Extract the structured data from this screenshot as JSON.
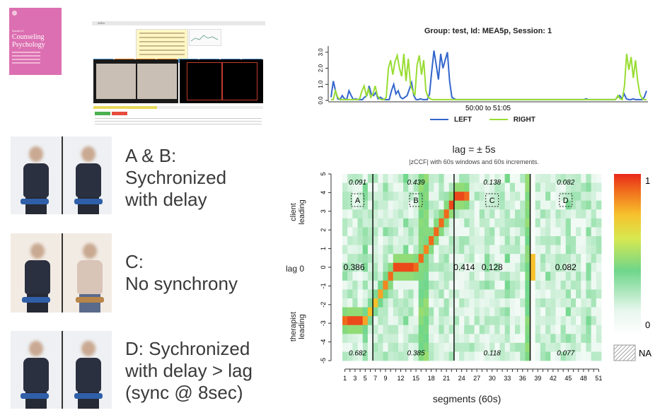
{
  "cover": {
    "journal_of": "Journal of",
    "title": "Counseling Psychology"
  },
  "software": {
    "window_title": "rMEA"
  },
  "captions": [
    {
      "lines": [
        "A & B:",
        "Sychronized",
        "with delay"
      ]
    },
    {
      "lines": [
        "C:",
        "No synchrony"
      ]
    },
    {
      "lines": [
        "D: Sychronized",
        "with delay > lag",
        "(sync @ 8sec)"
      ]
    }
  ],
  "timeseries": {
    "title": "Group: test, Id: MEA5p, Session: 1",
    "xlabel": "50:00 to 51:05",
    "y_ticks": [
      "0.0",
      "1.0",
      "2.0",
      "3.0"
    ],
    "legend": [
      {
        "name": "LEFT",
        "color": "#3366cc"
      },
      {
        "name": "RIGHT",
        "color": "#99dd33"
      }
    ]
  },
  "heatmap": {
    "title": "lag = ± 5s",
    "subtitle": "|zCCF| with 60s windows and 60s increments.",
    "y_ticks": [
      "5",
      "4",
      "3",
      "2",
      "1",
      "0",
      "-1",
      "-2",
      "-3",
      "-4",
      "-5"
    ],
    "y_labels": {
      "client": [
        "client",
        "leading"
      ],
      "lag0": "lag 0",
      "therapist": [
        "therapist",
        "leading"
      ]
    },
    "x_ticks": [
      "1",
      "3",
      "5",
      "7",
      "9",
      "12",
      "15",
      "18",
      "21",
      "24",
      "27",
      "30",
      "33",
      "36",
      "39",
      "42",
      "45",
      "48",
      "51"
    ],
    "xlabel": "segments (60s)",
    "segments": [
      {
        "label": "A",
        "top": "0.091",
        "mid": "0.386",
        "bottom": "0.682"
      },
      {
        "label": "B",
        "top": "0.439",
        "mid": "0.414",
        "bottom": "0.385"
      },
      {
        "label": "C",
        "top": "0.138",
        "mid": "0.128",
        "bottom": "0.118"
      },
      {
        "label": "D",
        "top": "0.082",
        "mid": "0.082",
        "bottom": "0.077"
      }
    ],
    "colorbar": {
      "max": "1",
      "min": "0",
      "na": "NA"
    }
  },
  "chart_data": [
    {
      "type": "line",
      "title": "Group: test, Id: MEA5p, Session: 1",
      "xlabel": "50:00 to 51:05",
      "ylabel": "",
      "ylim": [
        0,
        3.3
      ],
      "series": [
        {
          "name": "LEFT",
          "values": [
            0.2,
            1.2,
            0.6,
            0.1,
            0.05,
            0.3,
            0.1,
            0.05,
            0.6,
            0.3,
            0.05,
            0.1,
            0.05,
            0.05,
            0.05,
            0.2,
            0.3,
            0.9,
            0.4,
            0.3,
            0.5,
            0.1,
            0.2,
            0.1,
            0.05,
            0.05,
            0.05,
            0.6,
            1.0,
            0.4,
            0.6,
            0.2,
            0.1,
            0.2,
            0.3,
            0.7,
            1.1,
            0.3,
            0.05,
            0.05,
            0.1,
            0.05,
            0.05,
            0.05,
            0.4,
            1.8,
            3.1,
            2.2,
            1.3,
            2.9,
            2.0,
            2.5,
            3.0,
            1.2,
            0.2,
            0.1,
            0.05,
            0.05,
            0.05,
            0.05,
            0.05,
            0.05,
            0.05,
            0.05,
            0.05,
            0.05,
            0.05,
            0.05,
            0.05,
            0.05,
            0.05,
            0.05,
            0.05,
            0.05,
            0.05,
            0.05,
            0.05,
            0.05,
            0.05,
            0.05,
            0.05,
            0.05,
            0.05,
            0.05,
            0.05,
            0.05,
            0.05,
            0.05,
            0.05,
            0.05,
            0.05,
            0.05,
            0.05,
            0.05,
            0.05,
            0.05,
            0.05,
            0.05,
            0.05,
            0.05,
            0.05,
            0.05,
            0.05,
            0.05,
            0.05,
            0.05,
            0.05,
            0.05,
            0.05,
            0.05,
            0.05,
            0.05,
            0.05,
            0.05,
            0.1,
            0.05,
            0.05,
            0.05,
            0.05,
            0.05,
            0.05,
            0.05,
            0.05,
            0.05,
            0.05,
            0.05,
            0.05,
            0.05,
            0.2,
            0.3,
            0.1,
            0.4,
            0.1,
            0.05,
            0.05,
            0.1,
            0.05,
            0.05,
            0.05,
            0.05,
            0.2,
            0.6
          ]
        },
        {
          "name": "RIGHT",
          "values": [
            0.05,
            0.05,
            0.6,
            0.2,
            0.05,
            0.05,
            0.05,
            0.05,
            0.05,
            0.05,
            0.05,
            0.05,
            0.05,
            0.1,
            0.6,
            0.9,
            0.3,
            0.7,
            0.2,
            0.4,
            0.9,
            0.3,
            0.1,
            0.05,
            0.05,
            0.2,
            2.0,
            2.5,
            1.6,
            2.4,
            2.8,
            2.0,
            1.5,
            2.9,
            1.2,
            2.6,
            1.0,
            0.6,
            0.3,
            2.2,
            2.8,
            1.6,
            2.5,
            0.6,
            0.2,
            0.1,
            0.05,
            0.05,
            0.05,
            0.05,
            0.05,
            0.05,
            0.05,
            0.05,
            0.05,
            0.05,
            0.05,
            0.05,
            0.05,
            0.05,
            0.05,
            0.05,
            0.05,
            0.05,
            0.05,
            0.05,
            0.05,
            0.05,
            0.05,
            0.05,
            0.05,
            0.05,
            0.05,
            0.05,
            0.05,
            0.05,
            0.05,
            0.05,
            0.05,
            0.05,
            0.05,
            0.05,
            0.05,
            0.05,
            0.05,
            0.05,
            0.05,
            0.05,
            0.05,
            0.05,
            0.05,
            0.05,
            0.05,
            0.05,
            0.05,
            0.05,
            0.05,
            0.05,
            0.05,
            0.05,
            0.05,
            0.05,
            0.05,
            0.05,
            0.05,
            0.05,
            0.05,
            0.05,
            0.05,
            0.05,
            0.05,
            0.05,
            0.05,
            0.05,
            0.05,
            0.05,
            0.05,
            0.05,
            0.05,
            0.05,
            0.05,
            0.05,
            0.05,
            0.05,
            0.05,
            0.05,
            0.05,
            0.05,
            0.05,
            0.05,
            0.3,
            0.1,
            0.05,
            0.9,
            2.9,
            1.9,
            2.7,
            1.4,
            2.5,
            1.2,
            0.4,
            0.1,
            0.05,
            0.05
          ]
        }
      ]
    },
    {
      "type": "heatmap",
      "title": "lag = ± 5s",
      "subtitle": "|zCCF| with 60s windows and 60s increments.",
      "xlabel": "segments (60s)",
      "ylabel": "lag",
      "x_range": [
        1,
        51
      ],
      "y_range": [
        -5,
        5
      ],
      "peak_lag_by_segment": [
        -3,
        -3,
        -3,
        -3,
        -3,
        -2.5,
        -2,
        -1.5,
        -1,
        -0.5,
        0,
        0,
        0,
        0,
        0,
        0.5,
        1,
        1.5,
        2,
        2.5,
        3,
        3.5,
        4,
        4,
        4
      ],
      "peak_value_by_segment": [
        0.9,
        0.95,
        0.95,
        0.95,
        0.8,
        0.75,
        0.75,
        0.8,
        0.85,
        0.9,
        0.95,
        0.95,
        0.95,
        0.95,
        0.9,
        0.9,
        0.85,
        0.9,
        0.9,
        0.9,
        0.9,
        0.95,
        0.95,
        0.95,
        0.9
      ],
      "annotations": [
        {
          "region": "A",
          "top": 0.091,
          "mid": 0.386,
          "bottom": 0.682
        },
        {
          "region": "B",
          "top": 0.439,
          "mid": 0.414,
          "bottom": 0.385
        },
        {
          "region": "C",
          "top": 0.138,
          "mid": 0.128,
          "bottom": 0.118
        },
        {
          "region": "D",
          "top": 0.082,
          "mid": 0.082,
          "bottom": 0.077
        }
      ],
      "colorbar_range": [
        0,
        1
      ]
    }
  ]
}
